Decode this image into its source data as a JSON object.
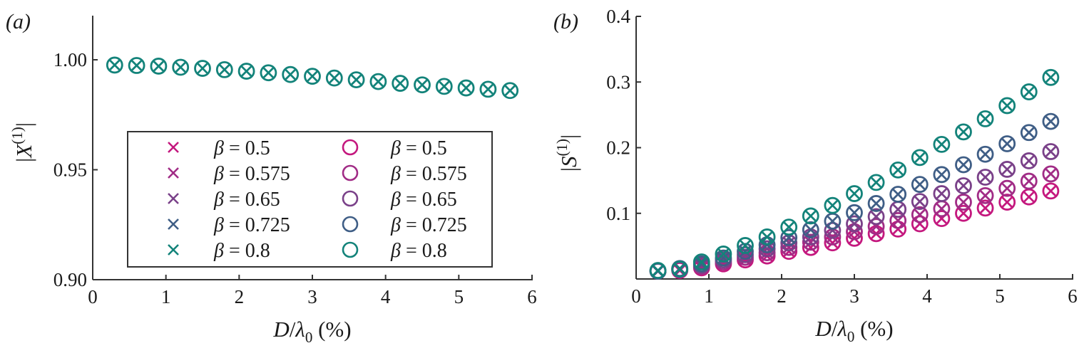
{
  "chart_data": [
    {
      "panel": "(a)",
      "type": "scatter",
      "title": "",
      "xlabel": "D/λ0 (%)",
      "ylabel": "|X(1)|",
      "xlim": [
        0,
        6
      ],
      "ylim": [
        0.9,
        1.02
      ],
      "xticks": [
        0,
        1,
        2,
        3,
        4,
        5,
        6
      ],
      "yticks": [
        0.9,
        0.95,
        1.0
      ],
      "ytick_labels": [
        "0.90",
        "0.95",
        "1.00"
      ],
      "grid": false,
      "x": [
        0.3,
        0.6,
        0.9,
        1.2,
        1.5,
        1.8,
        2.1,
        2.4,
        2.7,
        3.0,
        3.3,
        3.6,
        3.9,
        4.2,
        4.5,
        4.8,
        5.1,
        5.4,
        5.7
      ],
      "series": [
        {
          "name": "β = 0.8",
          "marker": "x+o",
          "color": "#13837a",
          "values": [
            0.9976,
            0.9974,
            0.9971,
            0.9966,
            0.9961,
            0.9955,
            0.9948,
            0.9941,
            0.9933,
            0.9925,
            0.9917,
            0.9909,
            0.9901,
            0.9893,
            0.9886,
            0.9879,
            0.9872,
            0.9866,
            0.986
          ]
        }
      ],
      "legend": {
        "position": "lower center",
        "entries": [
          {
            "marker": "x",
            "label": "β = 0.5",
            "color": "#c4187e"
          },
          {
            "marker": "x",
            "label": "β = 0.575",
            "color": "#a12c86"
          },
          {
            "marker": "x",
            "label": "β = 0.65",
            "color": "#7a4189"
          },
          {
            "marker": "x",
            "label": "β = 0.725",
            "color": "#3f5e86"
          },
          {
            "marker": "x",
            "label": "β = 0.8",
            "color": "#13837a"
          },
          {
            "marker": "o",
            "label": "β = 0.5",
            "color": "#c4187e"
          },
          {
            "marker": "o",
            "label": "β = 0.575",
            "color": "#a12c86"
          },
          {
            "marker": "o",
            "label": "β = 0.65",
            "color": "#7a4189"
          },
          {
            "marker": "o",
            "label": "β = 0.725",
            "color": "#3f5e86"
          },
          {
            "marker": "o",
            "label": "β = 0.8",
            "color": "#13837a"
          }
        ]
      }
    },
    {
      "panel": "(b)",
      "type": "scatter",
      "title": "",
      "xlabel": "D/λ0 (%)",
      "ylabel": "|S(1)|",
      "xlim": [
        0,
        6
      ],
      "ylim": [
        0,
        0.4
      ],
      "xticks": [
        0,
        1,
        2,
        3,
        4,
        5,
        6
      ],
      "yticks": [
        0.1,
        0.2,
        0.3,
        0.4
      ],
      "ytick_labels": [
        "0.1",
        "0.2",
        "0.3",
        "0.4"
      ],
      "grid": false,
      "x": [
        0.3,
        0.6,
        0.9,
        1.2,
        1.5,
        1.8,
        2.1,
        2.4,
        2.7,
        3.0,
        3.3,
        3.6,
        3.9,
        4.2,
        4.5,
        4.8,
        5.1,
        5.4,
        5.7
      ],
      "series": [
        {
          "name": "β = 0.5",
          "color": "#c4187e",
          "values": [
            0.012,
            0.013,
            0.017,
            0.023,
            0.029,
            0.035,
            0.042,
            0.048,
            0.055,
            0.062,
            0.069,
            0.076,
            0.084,
            0.092,
            0.1,
            0.108,
            0.117,
            0.125,
            0.134
          ]
        },
        {
          "name": "β = 0.575",
          "color": "#a12c86",
          "values": [
            0.012,
            0.014,
            0.019,
            0.026,
            0.033,
            0.04,
            0.048,
            0.056,
            0.064,
            0.072,
            0.08,
            0.089,
            0.098,
            0.107,
            0.117,
            0.127,
            0.138,
            0.149,
            0.16
          ]
        },
        {
          "name": "β = 0.65",
          "color": "#7a4189",
          "values": [
            0.012,
            0.015,
            0.021,
            0.029,
            0.037,
            0.046,
            0.055,
            0.064,
            0.074,
            0.084,
            0.095,
            0.106,
            0.118,
            0.13,
            0.142,
            0.155,
            0.167,
            0.18,
            0.194
          ]
        },
        {
          "name": "β = 0.725",
          "color": "#3f5e86",
          "values": [
            0.012,
            0.016,
            0.023,
            0.032,
            0.042,
            0.052,
            0.063,
            0.075,
            0.088,
            0.101,
            0.115,
            0.129,
            0.144,
            0.159,
            0.174,
            0.19,
            0.206,
            0.223,
            0.24
          ]
        },
        {
          "name": "β = 0.8",
          "color": "#13837a",
          "values": [
            0.013,
            0.015,
            0.026,
            0.038,
            0.051,
            0.064,
            0.079,
            0.096,
            0.112,
            0.13,
            0.147,
            0.166,
            0.185,
            0.205,
            0.224,
            0.244,
            0.264,
            0.285,
            0.307
          ]
        }
      ]
    }
  ],
  "panels": {
    "a": {
      "label": "(a)"
    },
    "b": {
      "label": "(b)"
    }
  }
}
